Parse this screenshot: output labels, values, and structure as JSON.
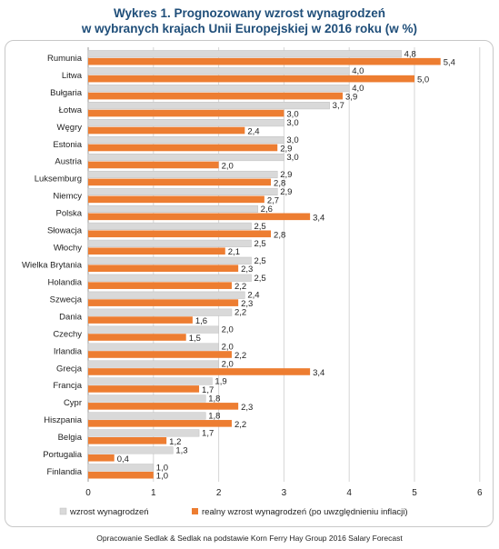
{
  "title_line1": "Wykres 1. Prognozowany wzrost wynagrodzeń",
  "title_line2": "w wybranych krajach Unii Europejskiej w 2016 roku (w %)",
  "source": "Opracowanie Sedlak & Sedlak na podstawie Korn Ferry Hay Group 2016 Salary Forecast",
  "chart_data": {
    "type": "bar",
    "orientation": "horizontal",
    "categories": [
      "Rumunia",
      "Litwa",
      "Bułgaria",
      "Łotwa",
      "Węgry",
      "Estonia",
      "Austria",
      "Luksemburg",
      "Niemcy",
      "Polska",
      "Słowacja",
      "Włochy",
      "Wielka Brytania",
      "Holandia",
      "Szwecja",
      "Dania",
      "Czechy",
      "Irlandia",
      "Grecja",
      "Francja",
      "Cypr",
      "Hiszpania",
      "Belgia",
      "Portugalia",
      "Finlandia"
    ],
    "series": [
      {
        "name": "wzrost wynagrodzeń",
        "color": "#d9d9d9",
        "values": [
          4.8,
          4.0,
          4.0,
          3.7,
          3.0,
          3.0,
          3.0,
          2.9,
          2.9,
          2.6,
          2.5,
          2.5,
          2.5,
          2.5,
          2.4,
          2.2,
          2.0,
          2.0,
          2.0,
          1.9,
          1.8,
          1.8,
          1.7,
          1.3,
          1.0
        ]
      },
      {
        "name": "realny wzrost wynagrodzeń (po uwzględnieniu inflacji)",
        "color": "#ed7d31",
        "values": [
          5.4,
          5.0,
          3.9,
          3.0,
          2.4,
          2.9,
          2.0,
          2.8,
          2.7,
          3.4,
          2.8,
          2.1,
          2.3,
          2.2,
          2.3,
          1.6,
          1.5,
          2.2,
          3.4,
          1.7,
          2.3,
          2.2,
          1.2,
          0.4,
          1.0
        ]
      }
    ],
    "x_ticks": [
      0,
      1,
      2,
      3,
      4,
      5,
      6
    ],
    "xlim": [
      0,
      6
    ],
    "grid": true,
    "legend_position": "bottom",
    "decimal_separator": ","
  }
}
